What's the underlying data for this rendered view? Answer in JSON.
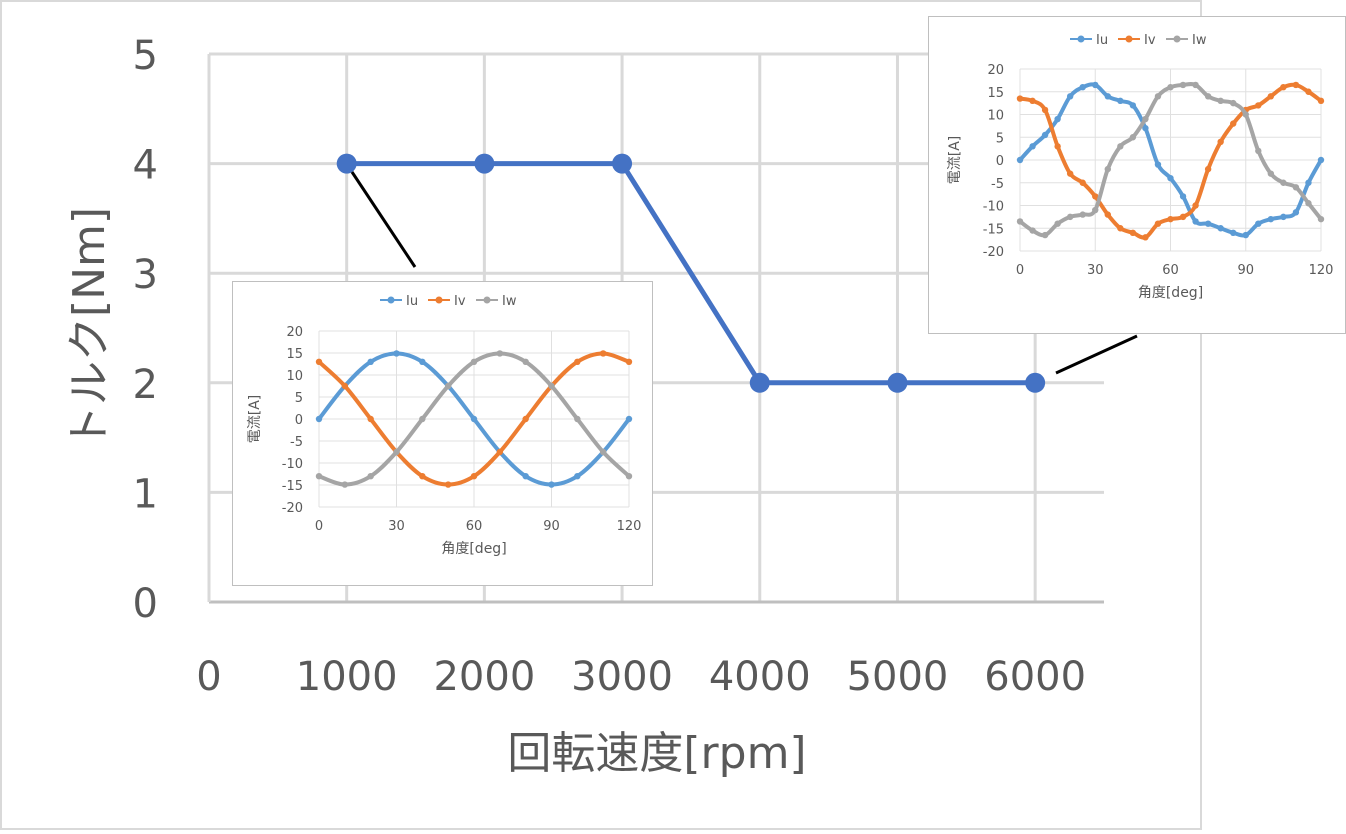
{
  "chart_data": [
    {
      "type": "line",
      "title": "",
      "xlabel": "回転速度[rpm]",
      "ylabel": "トルク[Nm]",
      "xlim": [
        0,
        6500
      ],
      "ylim": [
        0,
        5
      ],
      "x_ticks": [
        "0",
        "1000",
        "2000",
        "3000",
        "4000",
        "5000",
        "6000"
      ],
      "y_ticks": [
        "0",
        "1",
        "2",
        "3",
        "4",
        "5"
      ],
      "grid": true,
      "x": [
        1000,
        2000,
        3000,
        4000,
        5000,
        6000
      ],
      "series": [
        {
          "values": [
            4,
            4,
            4,
            2,
            2,
            2
          ],
          "color": "#4472c4"
        }
      ]
    },
    {
      "type": "line",
      "title": "",
      "xlabel": "角度[deg]",
      "ylabel": "電流[A]",
      "xlim": [
        0,
        120
      ],
      "ylim": [
        -20,
        20
      ],
      "x_ticks": [
        "0",
        "30",
        "60",
        "90",
        "120"
      ],
      "y_ticks": [
        "20",
        "15",
        "10",
        "5",
        "0",
        "-5",
        "-10",
        "-15",
        "-20"
      ],
      "grid": true,
      "legend": "top",
      "x": [
        0,
        10,
        20,
        30,
        40,
        50,
        60,
        70,
        80,
        90,
        100,
        110,
        120
      ],
      "series": [
        {
          "name": "Iu",
          "color": "#5b9bd5",
          "values": [
            0,
            7.5,
            13,
            14.9,
            13,
            7.5,
            0,
            -7.5,
            -13,
            -14.9,
            -13,
            -7.5,
            0
          ]
        },
        {
          "name": "Iv",
          "color": "#ed7d31",
          "values": [
            13,
            7.5,
            0,
            -7.5,
            -13,
            -14.9,
            -13,
            -7.5,
            0,
            7.5,
            13,
            14.9,
            13
          ]
        },
        {
          "name": "Iw",
          "color": "#a5a5a5",
          "values": [
            -13,
            -14.9,
            -13,
            -7.5,
            0,
            7.5,
            13,
            14.9,
            13,
            7.5,
            0,
            -7.5,
            -13
          ]
        }
      ]
    },
    {
      "type": "line",
      "title": "",
      "xlabel": "角度[deg]",
      "ylabel": "電流[A]",
      "xlim": [
        0,
        120
      ],
      "ylim": [
        -20,
        20
      ],
      "x_ticks": [
        "0",
        "30",
        "60",
        "90",
        "120"
      ],
      "y_ticks": [
        "20",
        "15",
        "10",
        "5",
        "0",
        "-5",
        "-10",
        "-15",
        "-20"
      ],
      "grid": true,
      "legend": "top",
      "x": [
        0,
        5,
        10,
        15,
        20,
        25,
        30,
        35,
        40,
        45,
        50,
        55,
        60,
        65,
        70,
        75,
        80,
        85,
        90,
        95,
        100,
        105,
        110,
        115,
        120
      ],
      "series": [
        {
          "name": "Iu",
          "color": "#5b9bd5",
          "values": [
            0,
            3,
            5.5,
            9,
            14,
            16,
            16.5,
            14,
            13,
            12,
            7,
            -1,
            -4,
            -8,
            -13.5,
            -14,
            -15,
            -16,
            -16.5,
            -14,
            -13,
            -12.5,
            -11.5,
            -5,
            0
          ]
        },
        {
          "name": "Iv",
          "color": "#ed7d31",
          "values": [
            13.5,
            13,
            11,
            3,
            -3,
            -5,
            -8,
            -12,
            -15,
            -16,
            -17,
            -14,
            -13,
            -12.5,
            -10,
            -2,
            4,
            8,
            11,
            12,
            14,
            16,
            16.5,
            15,
            13
          ]
        },
        {
          "name": "Iw",
          "color": "#a5a5a5",
          "values": [
            -13.5,
            -15.5,
            -16.5,
            -14,
            -12.5,
            -12,
            -11,
            -2,
            3,
            5,
            9,
            14,
            16,
            16.5,
            16.5,
            14,
            13,
            12.5,
            10,
            2,
            -3,
            -5,
            -6,
            -9.5,
            -13
          ]
        }
      ]
    }
  ]
}
